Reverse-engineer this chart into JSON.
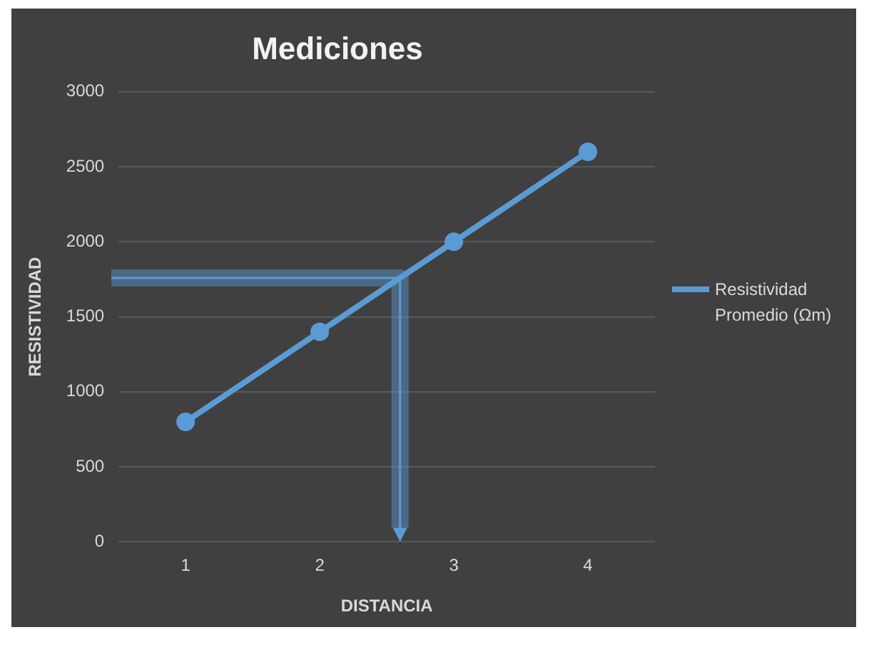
{
  "chart_data": {
    "type": "line",
    "title": "Mediciones",
    "xlabel": "DISTANCIA",
    "ylabel": "RESISTIVIDAD",
    "categories": [
      "1",
      "2",
      "3",
      "4"
    ],
    "series": [
      {
        "name": "Resistividad Promedio (Ωm)",
        "color": "#5b9bd5",
        "values": [
          800,
          1400,
          2000,
          2600
        ]
      }
    ],
    "ylim": [
      0,
      3000
    ],
    "yticks": [
      0,
      500,
      1000,
      1500,
      2000,
      2500,
      3000
    ],
    "grid": "y",
    "legend": "right",
    "marker": "circle"
  }
}
